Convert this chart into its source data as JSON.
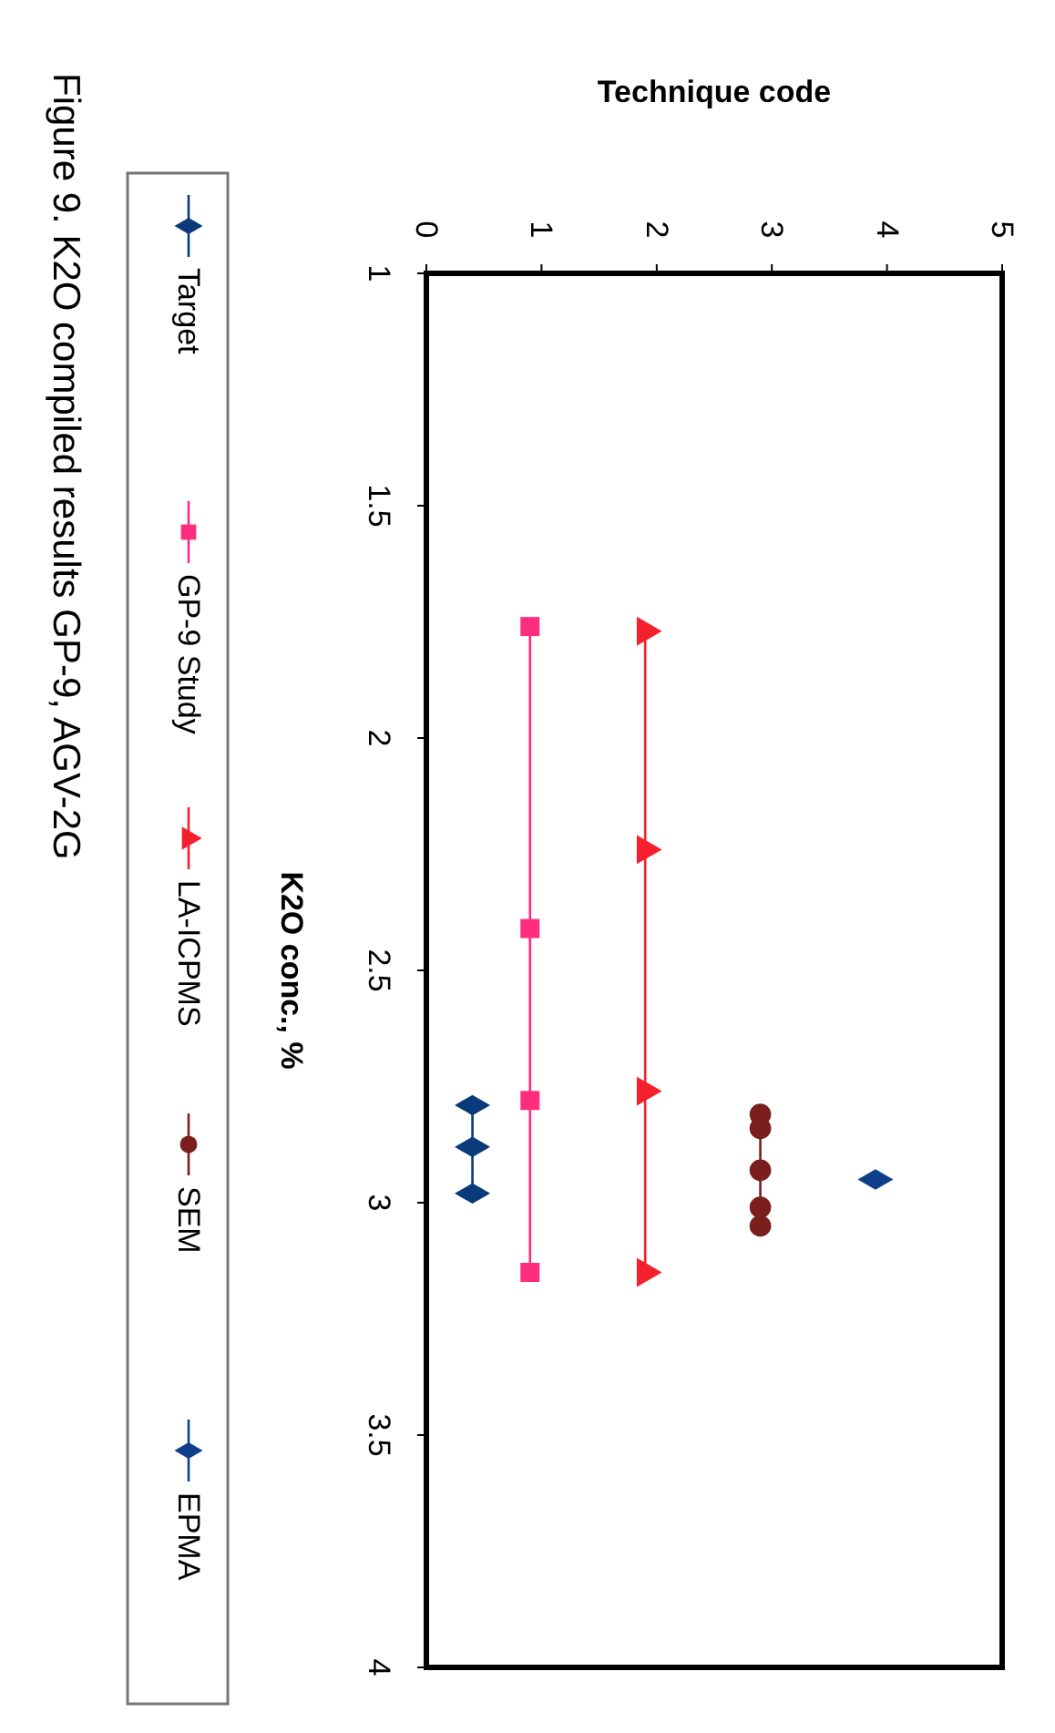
{
  "chart_data": {
    "type": "line",
    "xlabel": "Technique code",
    "ylabel": "K2O conc., %",
    "xlim": [
      0,
      5
    ],
    "xticks": [
      0,
      1,
      2,
      3,
      4,
      5
    ],
    "ylim": [
      4,
      1
    ],
    "yticks": [
      1,
      1.5,
      2,
      2.5,
      3,
      3.5,
      4
    ],
    "legend": "left",
    "grid": false,
    "annotations": [
      "Figure 9.  K2O compiled results GP-9, AGV-2G"
    ],
    "series": [
      {
        "name": "Target",
        "color": "#0a3a7a",
        "marker": "diamond",
        "x": [
          0.4,
          0.4,
          0.4
        ],
        "values": [
          2.79,
          2.88,
          2.98
        ]
      },
      {
        "name": "GP-9 Study",
        "color": "#ff2d7e",
        "marker": "square",
        "x": [
          0.9,
          0.9,
          0.9,
          0.9
        ],
        "values": [
          1.76,
          2.41,
          2.78,
          3.15
        ]
      },
      {
        "name": "LA-ICPMS",
        "color": "#f5202e",
        "marker": "triangle",
        "x": [
          1.9,
          1.9,
          1.9,
          1.9
        ],
        "values": [
          1.77,
          2.24,
          2.76,
          3.15
        ]
      },
      {
        "name": "SEM",
        "color": "#7a1e1e",
        "marker": "circle",
        "x": [
          2.9,
          2.9,
          2.9,
          2.9,
          2.9
        ],
        "values": [
          2.81,
          2.84,
          2.93,
          3.01,
          3.05
        ]
      },
      {
        "name": "EPMA",
        "color": "#0d4088",
        "marker": "diamond",
        "x": [
          3.9
        ],
        "values": [
          2.95
        ]
      }
    ]
  }
}
